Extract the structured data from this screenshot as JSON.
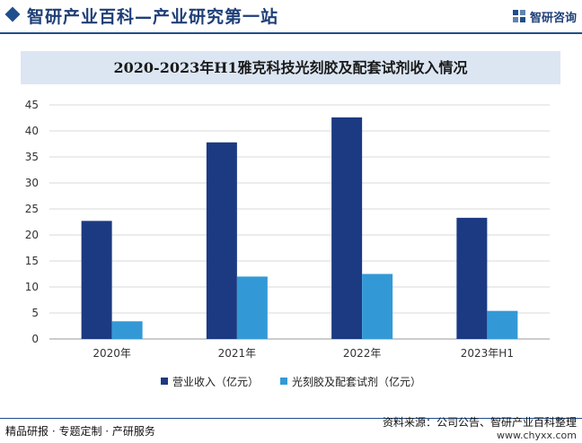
{
  "header": {
    "site_title": "智研产业百科—产业研究第一站",
    "logo_text": "智研咨询"
  },
  "colors": {
    "series1": "#1c3a82",
    "series2": "#3399d6",
    "header": "#1f4e8c",
    "title_bg": "#dce6f3"
  },
  "footer": {
    "tagline": "精品研报 · 专题定制 · 产研服务",
    "source": "资料来源：公司公告、智研产业百科整理",
    "url": "www.chyxx.com"
  },
  "chart_data": {
    "type": "bar",
    "title": "2020-2023年H1雅克科技光刻胶及配套试剂收入情况",
    "categories": [
      "2020年",
      "2021年",
      "2022年",
      "2023年H1"
    ],
    "series": [
      {
        "name": "营业收入（亿元）",
        "values": [
          22.7,
          37.8,
          42.6,
          23.3
        ]
      },
      {
        "name": "光刻胶及配套试剂（亿元）",
        "values": [
          3.4,
          12.0,
          12.5,
          5.4
        ]
      }
    ],
    "ylim": [
      0,
      45
    ],
    "yticks": [
      0,
      5,
      10,
      15,
      20,
      25,
      30,
      35,
      40,
      45
    ],
    "grid": true,
    "legend_position": "bottom"
  }
}
